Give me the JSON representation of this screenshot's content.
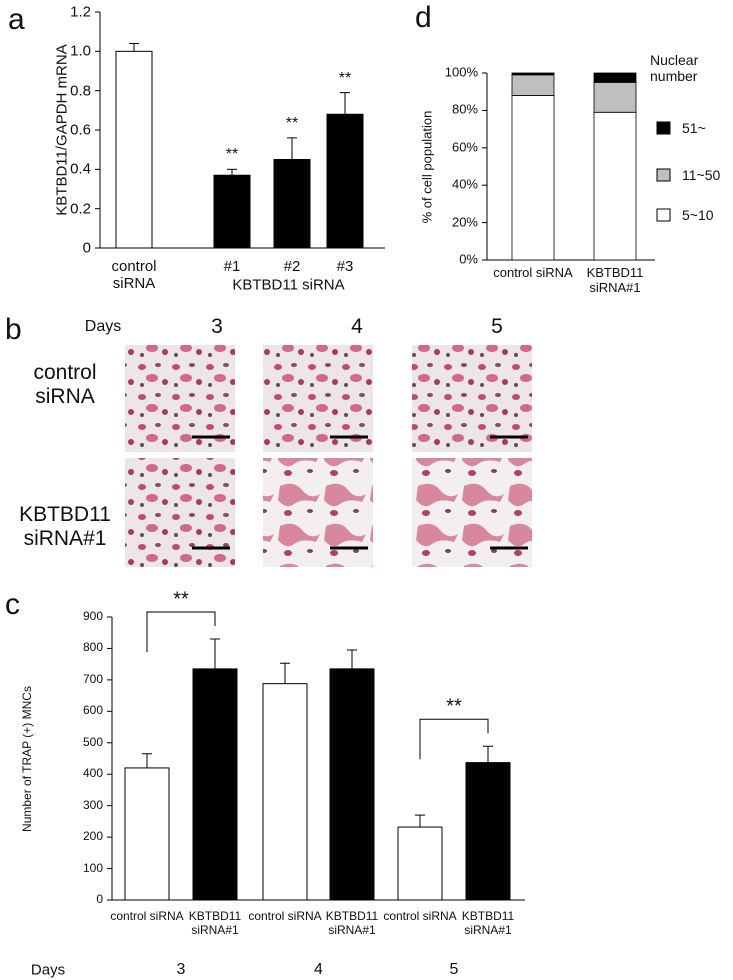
{
  "panels": [
    "a",
    "b",
    "c",
    "d"
  ],
  "micrographs": {
    "x_label": "Days",
    "days": [
      "3",
      "4",
      "5"
    ],
    "rows": [
      "control siRNA",
      "KBTBD11 siRNA#1"
    ]
  },
  "chart_data": [
    {
      "type": "bar",
      "ylabel": "KBTBD11/GAPDH mRNA",
      "categories": [
        "control siRNA",
        "#1",
        "#2",
        "#3"
      ],
      "values": [
        1.0,
        0.37,
        0.45,
        0.68
      ],
      "errors": [
        0.04,
        0.03,
        0.11,
        0.11
      ],
      "colors": [
        "#ffffff",
        "#000000",
        "#000000",
        "#000000"
      ],
      "annotations": [
        null,
        "**",
        "**",
        "**"
      ],
      "group_label": "KBTBD11 siRNA",
      "ylim": [
        0,
        1.2
      ],
      "yticks": [
        0,
        0.2,
        0.4,
        0.6,
        0.8,
        {
          "value": 1,
          "label": "1.0"
        },
        1.2
      ]
    },
    {
      "type": "stacked_bar",
      "ylabel": "% of cell population",
      "categories": [
        "control siRNA",
        "KBTBD11 siRNA#1"
      ],
      "legend_title": "Nuclear number",
      "series": [
        {
          "name": "51~",
          "color": "#000000",
          "values": [
            1,
            5
          ]
        },
        {
          "name": "11~50",
          "color": "#bfbfbf",
          "values": [
            11,
            16
          ]
        },
        {
          "name": "5~10",
          "color": "#ffffff",
          "values": [
            88,
            79
          ]
        }
      ],
      "ylim": [
        0,
        100
      ],
      "yticks": [
        {
          "value": 0,
          "label": "0%"
        },
        {
          "value": 20,
          "label": "20%"
        },
        {
          "value": 40,
          "label": "40%"
        },
        {
          "value": 60,
          "label": "60%"
        },
        {
          "value": 80,
          "label": "80%"
        },
        {
          "value": 100,
          "label": "100%"
        }
      ]
    },
    {
      "type": "bar",
      "ylabel": "Number of TRAP (+) MNCs",
      "categories": [
        "control siRNA",
        "KBTBD11 siRNA#1",
        "control siRNA",
        "KBTBD11 siRNA#1",
        "control siRNA",
        "KBTBD11 siRNA#1"
      ],
      "values": [
        420,
        735,
        688,
        735,
        232,
        437
      ],
      "errors": [
        45,
        95,
        65,
        60,
        38,
        52
      ],
      "colors": [
        "#ffffff",
        "#000000",
        "#ffffff",
        "#000000",
        "#ffffff",
        "#000000"
      ],
      "x_group_label": "Days",
      "groups": [
        "3",
        "4",
        "5"
      ],
      "brackets": [
        "**",
        null,
        "**"
      ],
      "ylim": [
        0,
        900
      ],
      "yticks": [
        0,
        100,
        200,
        300,
        400,
        500,
        600,
        700,
        800,
        900
      ]
    }
  ]
}
